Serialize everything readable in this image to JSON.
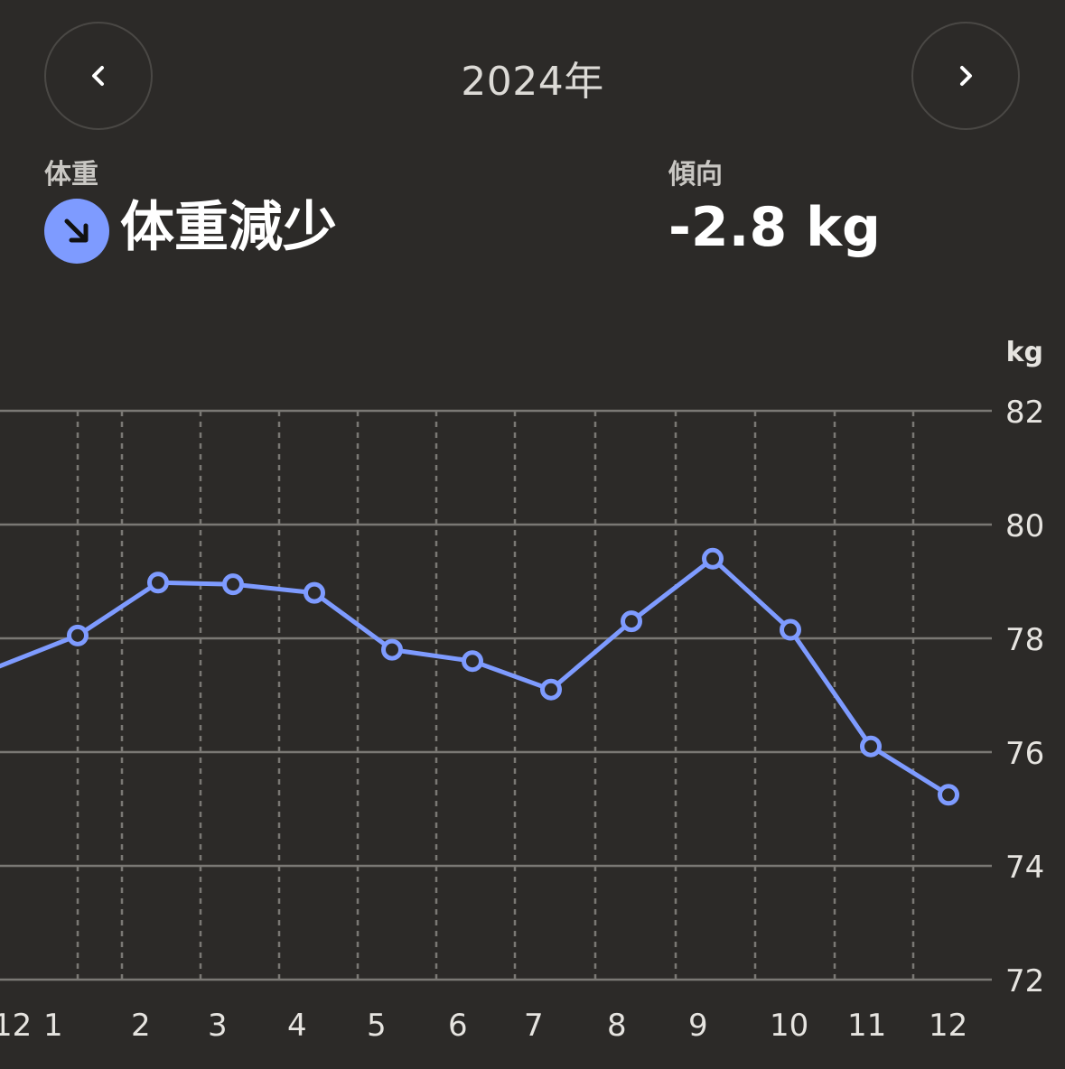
{
  "header": {
    "year_title": "2024年",
    "prev_icon": "chevron-left-icon",
    "next_icon": "chevron-right-icon"
  },
  "stats": {
    "weight_label": "体重",
    "weight_status": "体重減少",
    "weight_status_icon": "arrow-down-right-icon",
    "trend_label": "傾向",
    "trend_value": "-2.8 kg"
  },
  "colors": {
    "background": "#2c2a28",
    "accent": "#7e9bff",
    "grid": "#7a7874",
    "text": "#e6e4e0"
  },
  "chart_data": {
    "type": "line",
    "unit_label": "kg",
    "ylim": [
      72,
      82
    ],
    "y_ticks": [
      82,
      80,
      78,
      76,
      74,
      72
    ],
    "x_tick_labels": [
      "12",
      "1",
      "2",
      "3",
      "4",
      "5",
      "6",
      "7",
      "8",
      "9",
      "10",
      "11",
      "12"
    ],
    "grid": true,
    "series": [
      {
        "color": "#7e9bff",
        "points": [
          {
            "x": "12",
            "y": 77.5
          },
          {
            "x": "1",
            "y": 78.05
          },
          {
            "x": "2",
            "y": 78.98
          },
          {
            "x": "3",
            "y": 78.95
          },
          {
            "x": "4",
            "y": 78.8
          },
          {
            "x": "5",
            "y": 77.8
          },
          {
            "x": "6",
            "y": 77.6
          },
          {
            "x": "7",
            "y": 77.1
          },
          {
            "x": "8",
            "y": 78.3
          },
          {
            "x": "9",
            "y": 79.4
          },
          {
            "x": "10",
            "y": 78.15
          },
          {
            "x": "11",
            "y": 76.1
          },
          {
            "x": "12",
            "y": 75.25
          }
        ]
      }
    ]
  }
}
